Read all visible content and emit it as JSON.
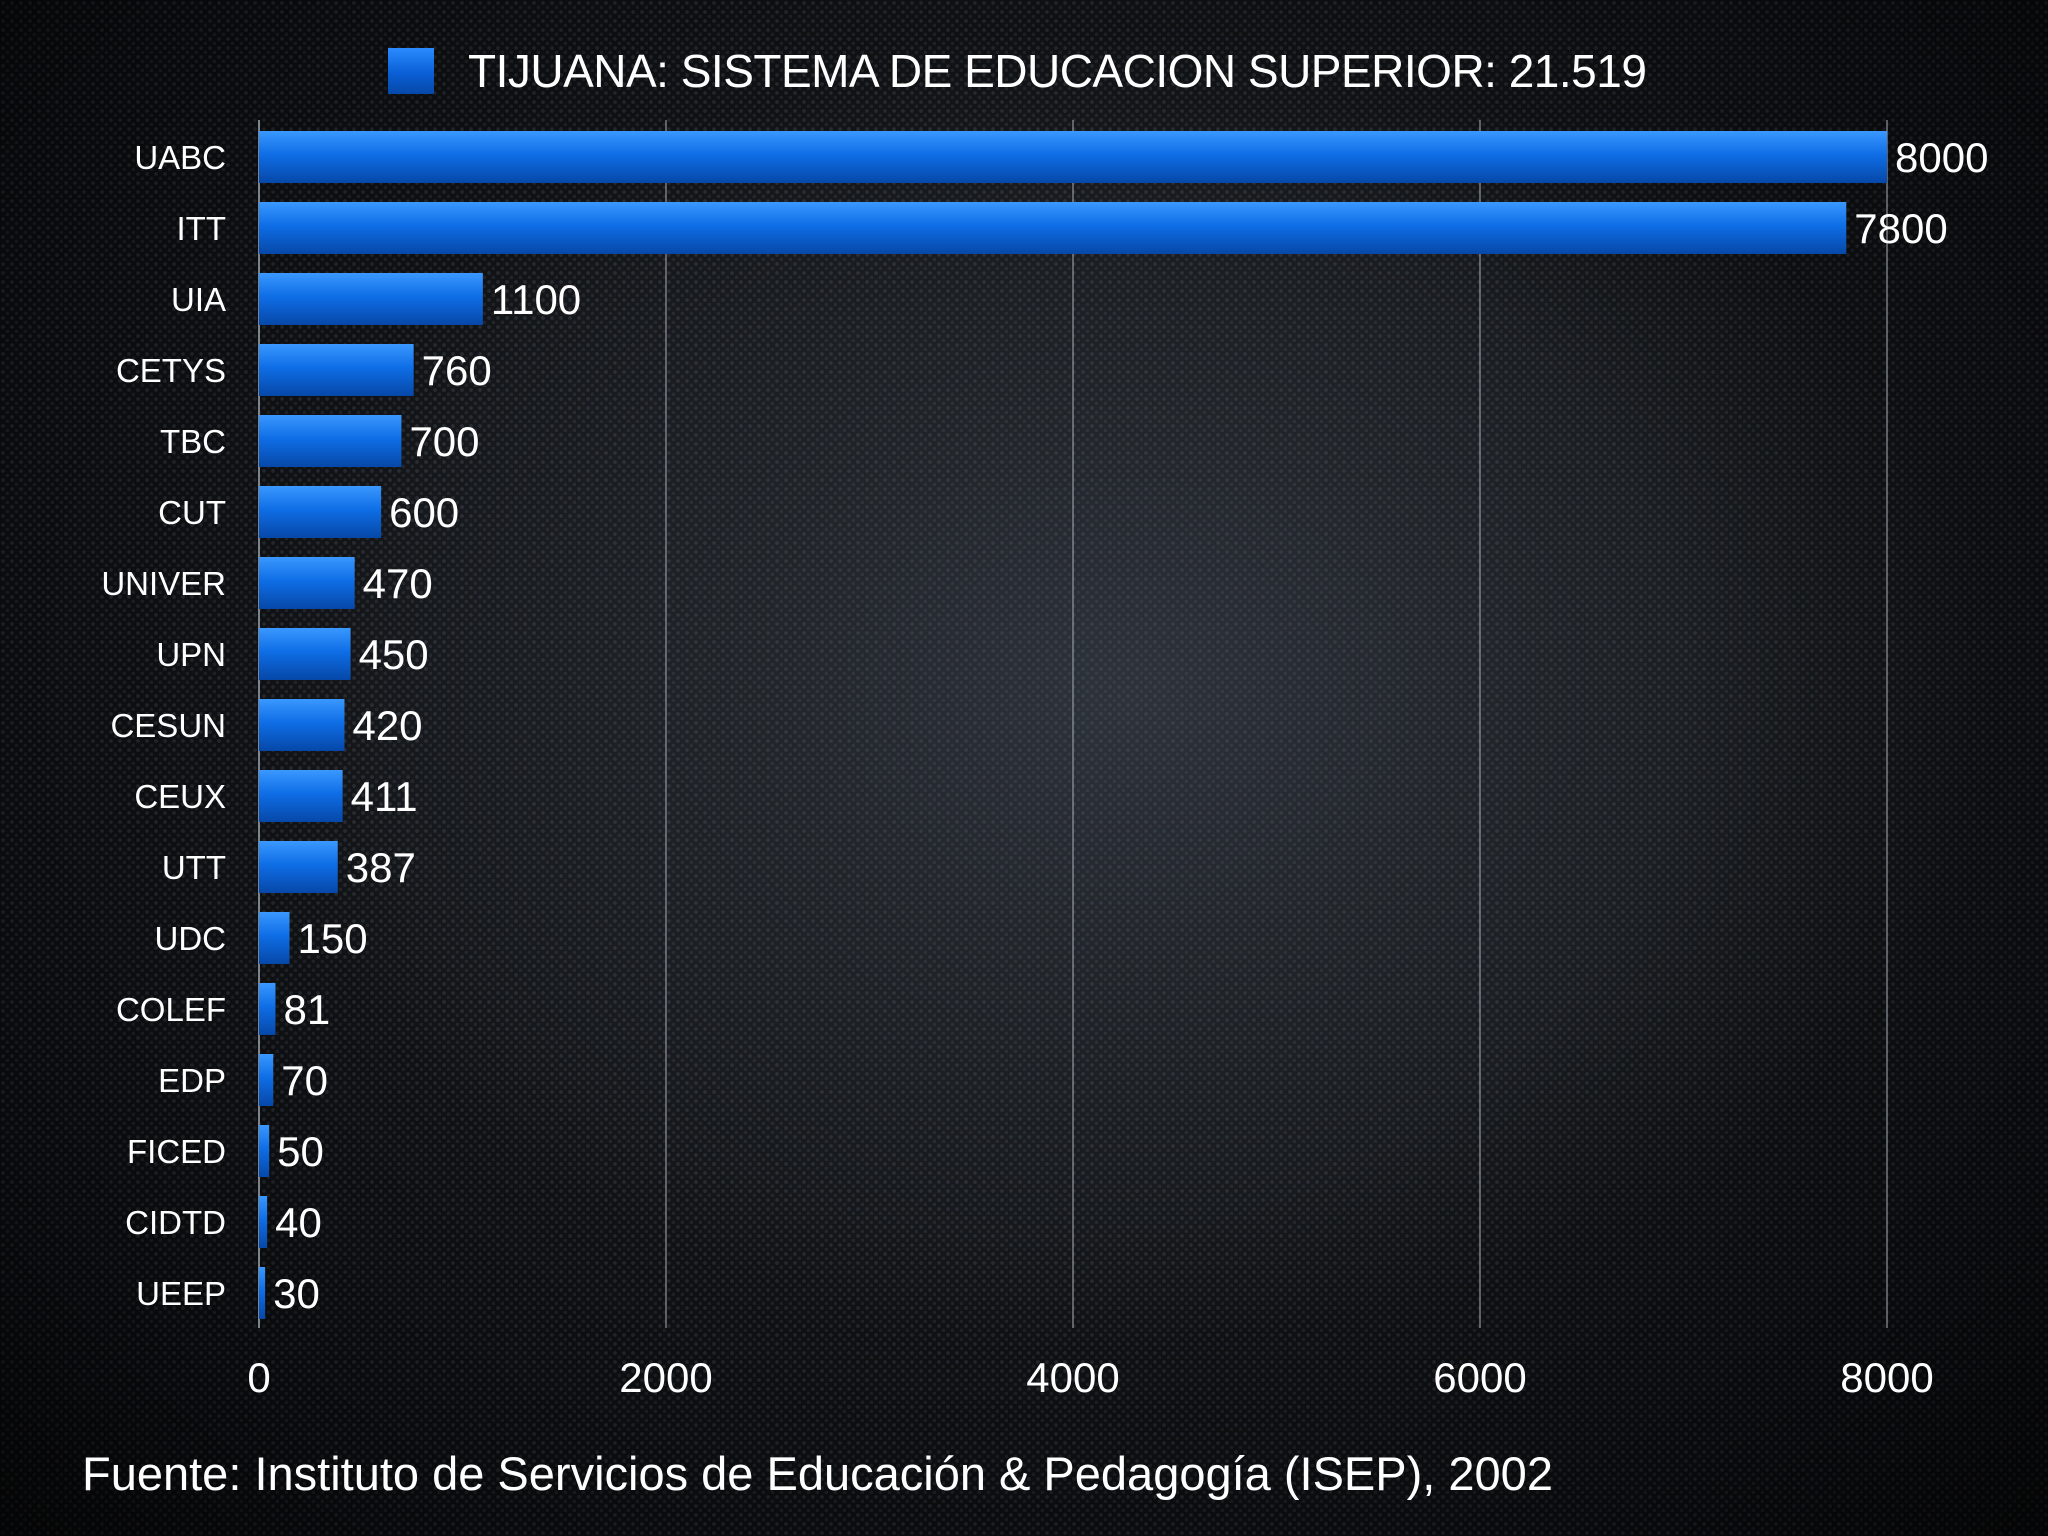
{
  "chart_data": {
    "type": "bar",
    "orientation": "horizontal",
    "categories": [
      "UABC",
      "ITT",
      "UIA",
      "CETYS",
      "TBC",
      "CUT",
      "UNIVER",
      "UPN",
      "CESUN",
      "CEUX",
      "UTT",
      "UDC",
      "COLEF",
      "EDP",
      "FICED",
      "CIDTD",
      "UEEP"
    ],
    "series": [
      {
        "name": "TIJUANA: SISTEMA DE EDUCACION SUPERIOR: 21.519",
        "values": [
          8000,
          7800,
          1100,
          760,
          700,
          600,
          470,
          450,
          420,
          411,
          387,
          150,
          81,
          70,
          50,
          40,
          30
        ],
        "color": "#0a6ae0"
      }
    ],
    "xlim": [
      0,
      8000
    ],
    "x_ticks": [
      0,
      2000,
      4000,
      6000,
      8000
    ],
    "grid": "vertical",
    "legend_position": "top",
    "source": "Fuente: Instituto de Servicios de Educación & Pedagogía (ISEP), 2002"
  }
}
